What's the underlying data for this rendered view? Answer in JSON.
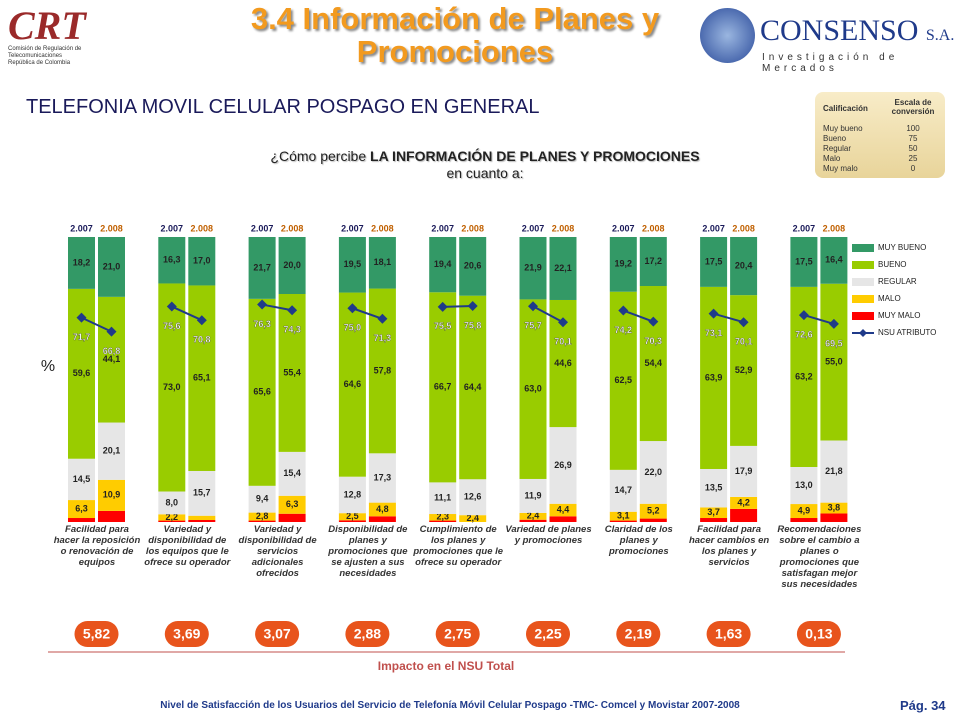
{
  "header": {
    "title": "3.4 Información de Planes y Promociones",
    "subtitle": "TELEFONIA MOVIL CELULAR POSPAGO EN GENERAL",
    "question": [
      "¿Cómo percibe ",
      "LA INFORMACIÓN DE PLANES Y PROMOCIONES",
      " en cuanto a:"
    ],
    "left_logo": {
      "name": "CRT",
      "caption": "Comisión de Regulación de Telecomunicaciones República de Colombia"
    },
    "right_logo": {
      "name": "CONSENSO",
      "suffix": "S.A.",
      "caption": "Investigación de Mercados"
    }
  },
  "scale_table": {
    "headers": [
      "Calificación",
      "Escala de conversión"
    ],
    "rows": [
      [
        "Muy bueno",
        "100"
      ],
      [
        "Bueno",
        "75"
      ],
      [
        "Regular",
        "50"
      ],
      [
        "Malo",
        "25"
      ],
      [
        "Muy malo",
        "0"
      ]
    ]
  },
  "chart_data": {
    "type": "stacked_bar",
    "axis_label": "%",
    "years": [
      "2.007",
      "2.008"
    ],
    "categories": [
      "Facilidad para hacer la reposición o renovación de equipos",
      "Variedad y disponibilidad de los equipos que le ofrece su operador",
      "Variedad y disponibilidad de servicios adicionales ofrecidos",
      "Disponibilidad de planes y promociones que se ajusten a sus necesidades",
      "Cumplimiento de los planes y promociones que le ofrece su operador",
      "Variedad de planes y promociones",
      "Claridad de los planes y promociones",
      "Facilidad para hacer cambios en los planes y servicios",
      "Recomendaciones sobre el cambio a planes o promociones que satisfagan mejor sus necesidades"
    ],
    "ylim": [
      0,
      100
    ],
    "series": [
      {
        "name": "MUY BUENO",
        "color": "#339966",
        "values": [
          [
            18.2,
            21.0
          ],
          [
            16.3,
            17.0
          ],
          [
            21.7,
            20.0
          ],
          [
            19.5,
            18.1
          ],
          [
            19.4,
            20.6
          ],
          [
            21.9,
            22.1
          ],
          [
            19.2,
            17.2
          ],
          [
            17.5,
            20.4
          ],
          [
            17.5,
            16.4
          ]
        ],
        "value_labels": [
          [
            "18,2",
            "21,0"
          ],
          [
            "16,3",
            "17,0"
          ],
          [
            "21,7",
            "20,0"
          ],
          [
            "19,5",
            "18,1"
          ],
          [
            "19,4",
            "20,6"
          ],
          [
            "21,9",
            "22,1"
          ],
          [
            "19,2",
            "17,2"
          ],
          [
            "17,5",
            "20,4"
          ],
          [
            "17,5",
            "16,4"
          ]
        ]
      },
      {
        "name": "BUENO",
        "color": "#99cc00",
        "values": [
          [
            59.6,
            44.1
          ],
          [
            73.0,
            65.1
          ],
          [
            65.6,
            55.4
          ],
          [
            64.6,
            57.8
          ],
          [
            66.7,
            64.4
          ],
          [
            63.0,
            44.6
          ],
          [
            62.5,
            54.4
          ],
          [
            63.9,
            52.9
          ],
          [
            63.2,
            55.0
          ]
        ],
        "value_labels": [
          [
            "59,6",
            "44,1"
          ],
          [
            "73,0",
            "65,1"
          ],
          [
            "65,6",
            "55,4"
          ],
          [
            "64,6",
            "57,8"
          ],
          [
            "66,7",
            "64,4"
          ],
          [
            "63,0",
            "44,6"
          ],
          [
            "62,5",
            "54,4"
          ],
          [
            "63,9",
            "52,9"
          ],
          [
            "63,2",
            "55,0"
          ]
        ]
      },
      {
        "name": "REGULAR",
        "color": "#e6e6e6",
        "values": [
          [
            14.5,
            20.1
          ],
          [
            8.0,
            15.7
          ],
          [
            9.4,
            15.4
          ],
          [
            12.8,
            17.3
          ],
          [
            11.1,
            12.6
          ],
          [
            11.9,
            26.9
          ],
          [
            14.7,
            22.0
          ],
          [
            13.5,
            17.9
          ],
          [
            13.0,
            21.8
          ]
        ],
        "value_labels": [
          [
            "14,5",
            "20,1"
          ],
          [
            "8,0",
            "15,7"
          ],
          [
            "9,4",
            "15,4"
          ],
          [
            "12,8",
            "17,3"
          ],
          [
            "11,1",
            "12,6"
          ],
          [
            "11,9",
            "26,9"
          ],
          [
            "14,7",
            "22,0"
          ],
          [
            "13,5",
            "17,9"
          ],
          [
            "13,0",
            "21,8"
          ]
        ]
      },
      {
        "name": "MALO",
        "color": "#ffcc00",
        "values": [
          [
            6.3,
            10.9
          ],
          [
            2.2,
            1.5
          ],
          [
            2.8,
            6.3
          ],
          [
            2.5,
            4.8
          ],
          [
            2.3,
            2.4
          ],
          [
            2.4,
            4.4
          ],
          [
            3.1,
            5.2
          ],
          [
            3.7,
            4.2
          ],
          [
            4.9,
            3.8
          ]
        ],
        "value_labels": [
          [
            "6,3",
            "10,9"
          ],
          [
            "2,2",
            null
          ],
          [
            "2,8",
            "6,3"
          ],
          [
            "2,5",
            "4,8"
          ],
          [
            "2,3",
            "2,4"
          ],
          [
            "2,4",
            "4,4"
          ],
          [
            "3,1",
            "5,2"
          ],
          [
            "3,7",
            "4,2"
          ],
          [
            "4,9",
            "3,8"
          ]
        ]
      },
      {
        "name": "MUY MALO",
        "color": "#ff0000",
        "values": [
          [
            1.4,
            3.9
          ],
          [
            0.5,
            0.7
          ],
          [
            0.5,
            2.9
          ],
          [
            0.6,
            2.0
          ],
          [
            0.5,
            0.0
          ],
          [
            0.8,
            2.0
          ],
          [
            0.5,
            1.2
          ],
          [
            1.4,
            4.6
          ],
          [
            1.4,
            3.0
          ]
        ]
      }
    ],
    "nsu": {
      "name": "NSU ATRIBUTO",
      "color": "#1f3a8a",
      "values": [
        [
          71.7,
          66.8
        ],
        [
          75.6,
          70.8
        ],
        [
          76.3,
          74.3
        ],
        [
          75.0,
          71.3
        ],
        [
          75.5,
          75.8
        ],
        [
          75.7,
          70.1
        ],
        [
          74.2,
          70.3
        ],
        [
          73.1,
          70.1
        ],
        [
          72.6,
          69.5
        ]
      ],
      "value_labels": [
        [
          "71,7",
          "66,8"
        ],
        [
          "75,6",
          "70,8"
        ],
        [
          "76,3",
          "74,3"
        ],
        [
          "75,0",
          "71,3"
        ],
        [
          "75,5",
          "75,8"
        ],
        [
          "75,7",
          "70,1"
        ],
        [
          "74,2",
          "70,3"
        ],
        [
          "73,1",
          "70,1"
        ],
        [
          "72,6",
          "69,5"
        ]
      ]
    },
    "impact": {
      "title": "Impacto en el NSU Total",
      "values": [
        5.82,
        3.69,
        3.07,
        2.88,
        2.75,
        2.25,
        2.19,
        1.63,
        0.13
      ],
      "value_labels": [
        "5,82",
        "3,69",
        "3,07",
        "2,88",
        "2,75",
        "2,25",
        "2,19",
        "1,63",
        "0,13"
      ]
    }
  },
  "footer": {
    "text": "Nivel de Satisfacción de los Usuarios del Servicio de Telefonía Móvil Celular Pospago -TMC- Comcel y Movistar 2007-2008",
    "page": "Pág. 34"
  }
}
